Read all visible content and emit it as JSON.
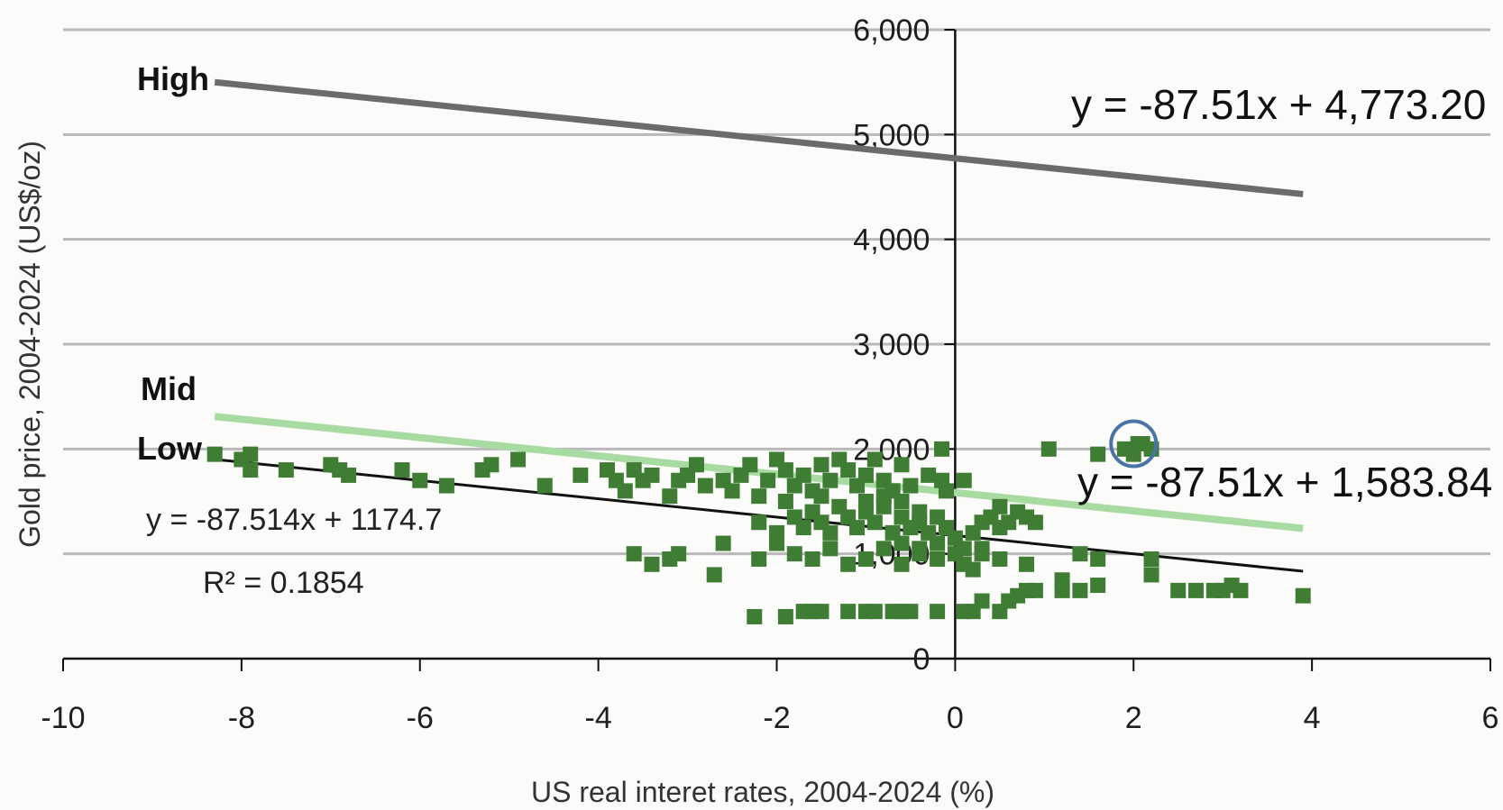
{
  "chart_data": {
    "type": "scatter",
    "xlabel": "US real interet rates, 2004-2024 (%)",
    "ylabel": "Gold price, 2004-2024 (US$/oz)",
    "xlim": [
      -10,
      6
    ],
    "ylim": [
      0,
      6000
    ],
    "x_ticks": [
      -10,
      -8,
      -6,
      -4,
      -2,
      0,
      2,
      4,
      6
    ],
    "y_ticks": [
      0,
      1000,
      2000,
      3000,
      4000,
      5000,
      6000
    ],
    "x_tick_labels": [
      "-10",
      "-8",
      "-6",
      "-4",
      "-2",
      "0",
      "2",
      "4",
      "6"
    ],
    "y_tick_labels": [
      "0",
      "1,000",
      "2,000",
      "3,000",
      "4,000",
      "5,000",
      "6,000"
    ],
    "grid": "horizontal",
    "marker_color": "#3e7d33",
    "points": [
      [
        -8.3,
        1950
      ],
      [
        -8.0,
        1900
      ],
      [
        -7.9,
        1950
      ],
      [
        -7.9,
        1800
      ],
      [
        -7.5,
        1800
      ],
      [
        -7.0,
        1850
      ],
      [
        -6.9,
        1800
      ],
      [
        -6.8,
        1750
      ],
      [
        -6.2,
        1800
      ],
      [
        -6.0,
        1700
      ],
      [
        -5.7,
        1650
      ],
      [
        -5.3,
        1800
      ],
      [
        -5.2,
        1850
      ],
      [
        -4.9,
        1900
      ],
      [
        -4.6,
        1650
      ],
      [
        -4.2,
        1750
      ],
      [
        -3.9,
        1800
      ],
      [
        -3.8,
        1700
      ],
      [
        -3.7,
        1600
      ],
      [
        -3.6,
        1800
      ],
      [
        -3.5,
        1700
      ],
      [
        -3.4,
        1750
      ],
      [
        -3.2,
        1550
      ],
      [
        -3.1,
        1700
      ],
      [
        -3.0,
        1750
      ],
      [
        -2.9,
        1850
      ],
      [
        -2.8,
        1650
      ],
      [
        -2.6,
        1700
      ],
      [
        -2.5,
        1600
      ],
      [
        -2.4,
        1750
      ],
      [
        -2.3,
        1850
      ],
      [
        -2.2,
        1550
      ],
      [
        -2.1,
        1700
      ],
      [
        -2.0,
        1900
      ],
      [
        -1.9,
        1800
      ],
      [
        -1.8,
        1650
      ],
      [
        -1.7,
        1750
      ],
      [
        -1.6,
        1600
      ],
      [
        -1.5,
        1850
      ],
      [
        -1.4,
        1700
      ],
      [
        -1.3,
        1900
      ],
      [
        -1.2,
        1800
      ],
      [
        -1.1,
        1650
      ],
      [
        -1.0,
        1750
      ],
      [
        -0.9,
        1900
      ],
      [
        -0.8,
        1700
      ],
      [
        -0.7,
        1600
      ],
      [
        -0.6,
        1850
      ],
      [
        -0.5,
        1650
      ],
      [
        -0.3,
        1750
      ],
      [
        -0.1,
        1600
      ],
      [
        0.1,
        1700
      ],
      [
        -0.15,
        2000
      ],
      [
        -0.15,
        1700
      ],
      [
        -0.4,
        1400
      ],
      [
        -0.6,
        1500
      ],
      [
        -2.2,
        1300
      ],
      [
        -2.0,
        1200
      ],
      [
        -1.8,
        1350
      ],
      [
        -1.7,
        1250
      ],
      [
        -1.6,
        1400
      ],
      [
        -1.5,
        1300
      ],
      [
        -1.4,
        1200
      ],
      [
        -1.3,
        1450
      ],
      [
        -1.2,
        1350
      ],
      [
        -1.1,
        1250
      ],
      [
        -1.0,
        1400
      ],
      [
        -0.9,
        1300
      ],
      [
        -0.8,
        1450
      ],
      [
        -0.7,
        1200
      ],
      [
        -0.6,
        1350
      ],
      [
        -0.5,
        1250
      ],
      [
        -0.4,
        1300
      ],
      [
        -0.3,
        1200
      ],
      [
        -0.2,
        1350
      ],
      [
        -0.1,
        1250
      ],
      [
        -1.9,
        1500
      ],
      [
        -1.5,
        1550
      ],
      [
        -1.0,
        1500
      ],
      [
        -0.8,
        1550
      ],
      [
        -0.6,
        1100
      ],
      [
        -0.4,
        1050
      ],
      [
        -0.2,
        1100
      ],
      [
        0.0,
        1150
      ],
      [
        0.1,
        1050
      ],
      [
        0.2,
        1200
      ],
      [
        0.3,
        1300
      ],
      [
        0.3,
        1000
      ],
      [
        0.4,
        1350
      ],
      [
        0.5,
        1250
      ],
      [
        0.5,
        1450
      ],
      [
        0.6,
        1300
      ],
      [
        0.7,
        1400
      ],
      [
        0.8,
        1350
      ],
      [
        0.9,
        1300
      ],
      [
        1.05,
        2000
      ],
      [
        1.6,
        1950
      ],
      [
        2.05,
        2050
      ],
      [
        1.9,
        2000
      ],
      [
        2.0,
        1950
      ],
      [
        2.1,
        2050
      ],
      [
        2.2,
        2000
      ],
      [
        -3.6,
        1000
      ],
      [
        -3.4,
        900
      ],
      [
        -3.2,
        950
      ],
      [
        -3.1,
        1000
      ],
      [
        -2.7,
        800
      ],
      [
        -2.6,
        1100
      ],
      [
        -2.2,
        950
      ],
      [
        -2.0,
        1100
      ],
      [
        -1.8,
        1000
      ],
      [
        -1.6,
        950
      ],
      [
        -1.4,
        1050
      ],
      [
        -1.2,
        900
      ],
      [
        -1.0,
        950
      ],
      [
        -0.8,
        1050
      ],
      [
        -0.6,
        900
      ],
      [
        -0.4,
        1000
      ],
      [
        -0.2,
        950
      ],
      [
        0.0,
        1000
      ],
      [
        0.1,
        900
      ],
      [
        0.2,
        850
      ],
      [
        0.3,
        1050
      ],
      [
        0.5,
        950
      ],
      [
        0.8,
        900
      ],
      [
        1.4,
        1000
      ],
      [
        1.6,
        950
      ],
      [
        2.2,
        950
      ],
      [
        2.2,
        800
      ],
      [
        -2.25,
        400
      ],
      [
        -1.9,
        400
      ],
      [
        -1.7,
        450
      ],
      [
        -1.6,
        450
      ],
      [
        -1.5,
        450
      ],
      [
        -1.2,
        450
      ],
      [
        -1.0,
        450
      ],
      [
        -0.9,
        450
      ],
      [
        -0.7,
        450
      ],
      [
        -0.6,
        450
      ],
      [
        -0.5,
        450
      ],
      [
        -0.2,
        450
      ],
      [
        0.1,
        450
      ],
      [
        0.2,
        450
      ],
      [
        0.3,
        550
      ],
      [
        0.5,
        450
      ],
      [
        0.6,
        550
      ],
      [
        0.7,
        600
      ],
      [
        0.8,
        650
      ],
      [
        0.9,
        650
      ],
      [
        1.2,
        650
      ],
      [
        1.2,
        750
      ],
      [
        1.4,
        650
      ],
      [
        1.6,
        700
      ],
      [
        2.5,
        650
      ],
      [
        2.7,
        650
      ],
      [
        2.9,
        650
      ],
      [
        3.0,
        650
      ],
      [
        3.1,
        700
      ],
      [
        3.2,
        650
      ],
      [
        3.9,
        600
      ]
    ],
    "lines": [
      {
        "name": "High",
        "slope": -87.51,
        "intercept": 4773.2,
        "x_range": [
          -8.3,
          3.9
        ],
        "color": "#6b6b6b",
        "equation": "y = -87.51x + 4,773.20"
      },
      {
        "name": "Mid",
        "slope": -87.51,
        "intercept": 1583.84,
        "x_range": [
          -8.3,
          3.9
        ],
        "color": "#a8dba1",
        "equation": "y = -87.51x + 1,583.84"
      },
      {
        "name": "Low",
        "slope": -87.514,
        "intercept": 1174.7,
        "x_range": [
          -8.3,
          3.9
        ],
        "color": "#111111",
        "equation": "y = -87.514x + 1174.7",
        "r2": "R² = 0.1854"
      }
    ],
    "highlight": {
      "x": 2.0,
      "y": 2050,
      "color": "#4a73a6"
    }
  }
}
